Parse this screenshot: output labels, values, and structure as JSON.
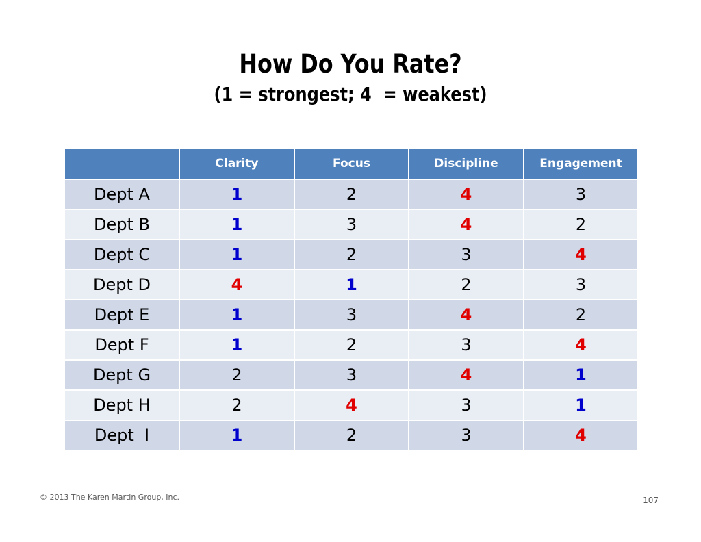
{
  "slide": {
    "title": "How Do You Rate?",
    "subtitle": "(1 = strongest; 4  = weakest)"
  },
  "table": {
    "headers": [
      "",
      "Clarity",
      "Focus",
      "Discipline",
      "Engagement"
    ],
    "rows": [
      {
        "label": "Dept A",
        "values": [
          "1",
          "2",
          "4",
          "3"
        ]
      },
      {
        "label": "Dept B",
        "values": [
          "1",
          "3",
          "4",
          "2"
        ]
      },
      {
        "label": "Dept C",
        "values": [
          "1",
          "2",
          "3",
          "4"
        ]
      },
      {
        "label": "Dept D",
        "values": [
          "4",
          "1",
          "2",
          "3"
        ]
      },
      {
        "label": "Dept E",
        "values": [
          "1",
          "3",
          "4",
          "2"
        ]
      },
      {
        "label": "Dept F",
        "values": [
          "1",
          "2",
          "3",
          "4"
        ]
      },
      {
        "label": "Dept G",
        "values": [
          "2",
          "3",
          "4",
          "1"
        ]
      },
      {
        "label": "Dept H",
        "values": [
          "2",
          "4",
          "3",
          "1"
        ]
      },
      {
        "label": "Dept  I",
        "values": [
          "1",
          "2",
          "3",
          "4"
        ]
      }
    ]
  },
  "colors": {
    "header_bg": "#4f81bd",
    "row_odd": "#d0d8e8",
    "row_even": "#e9edf4",
    "strongest": "#0000cc",
    "weakest": "#e00000"
  },
  "footer": {
    "copyright": "© 2013 The Karen Martin Group, Inc.",
    "page_number": "107"
  }
}
